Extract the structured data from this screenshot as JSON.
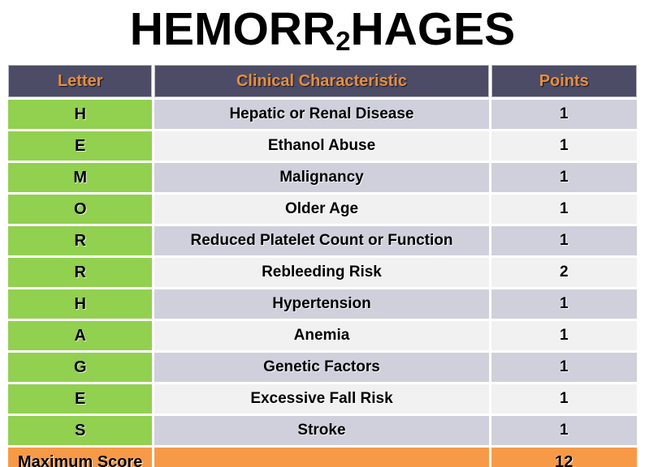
{
  "title": {
    "prefix": "HEMORR",
    "subscript": "2",
    "suffix": "HAGES"
  },
  "table": {
    "headers": [
      "Letter",
      "Clinical Characteristic",
      "Points"
    ],
    "rows": [
      {
        "letter": "H",
        "characteristic": "Hepatic or Renal Disease",
        "points": "1"
      },
      {
        "letter": "E",
        "characteristic": "Ethanol Abuse",
        "points": "1"
      },
      {
        "letter": "M",
        "characteristic": "Malignancy",
        "points": "1"
      },
      {
        "letter": "O",
        "characteristic": "Older Age",
        "points": "1"
      },
      {
        "letter": "R",
        "characteristic": "Reduced Platelet Count or Function",
        "points": "1"
      },
      {
        "letter": "R",
        "characteristic": "Rebleeding Risk",
        "points": "2"
      },
      {
        "letter": "H",
        "characteristic": "Hypertension",
        "points": "1"
      },
      {
        "letter": "A",
        "characteristic": "Anemia",
        "points": "1"
      },
      {
        "letter": "G",
        "characteristic": "Genetic Factors",
        "points": "1"
      },
      {
        "letter": "E",
        "characteristic": "Excessive Fall Risk",
        "points": "1"
      },
      {
        "letter": "S",
        "characteristic": "Stroke",
        "points": "1"
      }
    ],
    "footer": {
      "label": "Maximum Score",
      "points": "12"
    }
  },
  "colors": {
    "header_background": "#4D4C66",
    "header_text": "#E78F3C",
    "letter_column_background": "#92D050",
    "row_alternate_background": "#D0D0DD",
    "row_light_background": "#F1F1F2",
    "footer_background": "#F79A47",
    "title_text": "#000000",
    "body_text": "#000000",
    "page_background": "#FFFFFF"
  }
}
